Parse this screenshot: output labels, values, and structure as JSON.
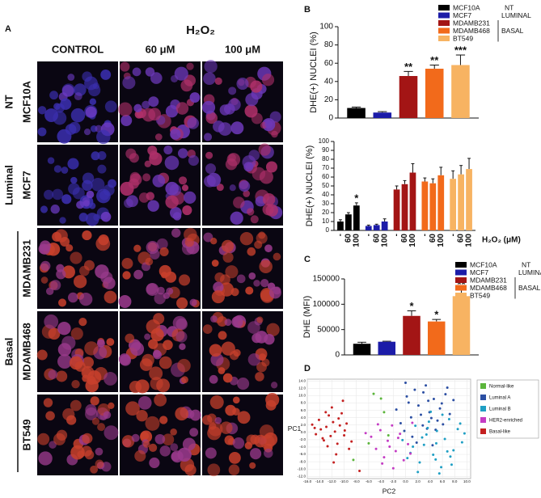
{
  "panel_labels": [
    "A",
    "B",
    "C",
    "D"
  ],
  "panel_a": {
    "treatment": "H₂O₂",
    "columns": [
      "CONTROL",
      "60 μM",
      "100 μM"
    ],
    "rows": [
      "MCF10A",
      "MCF7",
      "MDAMB231",
      "MDAMB468",
      "BT549"
    ],
    "groups": [
      "NT",
      "Luminal",
      "Basal"
    ]
  },
  "chart_data": [
    {
      "type": "bar",
      "ylabel": "DHE(+) NUCLEI (%)",
      "categories": [
        "MCF10A",
        "MCF7",
        "MDAMB231",
        "MDAMB468",
        "BT549"
      ],
      "colors": [
        "#000000",
        "#1c1ca8",
        "#a31515",
        "#f26a1b",
        "#f7b362"
      ],
      "values": [
        11,
        6,
        46,
        54,
        58
      ],
      "errors": [
        1,
        1,
        5,
        4,
        11
      ],
      "annotations": [
        null,
        null,
        "**",
        "**",
        "***"
      ],
      "legend_groups": [
        "NT",
        "LUMINAL",
        "BASAL"
      ],
      "ylim": [
        0,
        100
      ],
      "yticks": [
        0,
        20,
        40,
        60,
        80,
        100
      ]
    },
    {
      "type": "bar",
      "ylabel": "DHE(+) NUCLEI (%)",
      "xlabel": "H₂O₂ (μM)",
      "categories": [
        "-",
        "60",
        "100",
        "-",
        "60",
        "100",
        "-",
        "60",
        "100",
        "-",
        "60",
        "100",
        "-",
        "60",
        "100"
      ],
      "colors": [
        "#000000",
        "#000000",
        "#000000",
        "#1c1ca8",
        "#1c1ca8",
        "#1c1ca8",
        "#a31515",
        "#a31515",
        "#a31515",
        "#f26a1b",
        "#f26a1b",
        "#f26a1b",
        "#f7b362",
        "#f7b362",
        "#f7b362"
      ],
      "values": [
        10,
        18,
        28,
        5,
        6,
        10,
        46,
        52,
        65,
        55,
        53,
        62,
        58,
        63,
        69
      ],
      "errors": [
        2,
        2,
        3,
        1,
        1,
        3,
        4,
        4,
        10,
        4,
        5,
        9,
        9,
        10,
        12
      ],
      "annotations": [
        null,
        null,
        "*",
        null,
        null,
        null,
        null,
        null,
        null,
        null,
        null,
        null,
        null,
        null,
        null
      ],
      "ylim": [
        0,
        100
      ],
      "yticks": [
        0,
        10,
        20,
        30,
        40,
        50,
        60,
        70,
        80,
        90,
        100
      ]
    },
    {
      "type": "bar",
      "ylabel": "DHE (MFI)",
      "categories": [
        "MCF10A",
        "MCF7",
        "MDAMB231",
        "MDAMB468",
        "BT549"
      ],
      "colors": [
        "#000000",
        "#1c1ca8",
        "#a31515",
        "#f26a1b",
        "#f7b362"
      ],
      "values": [
        22000,
        26000,
        77000,
        66000,
        116000
      ],
      "errors": [
        3000,
        1000,
        10000,
        4000,
        14000
      ],
      "annotations": [
        null,
        null,
        "*",
        "*",
        "**"
      ],
      "legend_groups": [
        "NT",
        "LUMINAL",
        "BASAL"
      ],
      "ylim": [
        0,
        150000
      ],
      "yticks": [
        0,
        50000,
        100000,
        150000
      ]
    },
    {
      "type": "scatter",
      "xlabel": "PC2",
      "ylabel": "PC1",
      "grid": true,
      "xlim": [
        -16,
        10.6
      ],
      "ylim": [
        -12.6,
        14.5
      ],
      "xticks": [
        {
          "value": -16,
          "label": "-16.0"
        },
        {
          "value": -14,
          "label": "-14.0"
        },
        {
          "value": -12,
          "label": "-12.0"
        },
        {
          "value": -10,
          "label": "-10.0"
        },
        {
          "value": -8,
          "label": "-8.0"
        },
        {
          "value": -6,
          "label": "-6.0"
        },
        {
          "value": -4,
          "label": "-4.0"
        },
        {
          "value": -2,
          "label": "-2.0"
        },
        {
          "value": 0,
          "label": "0.0"
        },
        {
          "value": 2,
          "label": "2.0"
        },
        {
          "value": 4,
          "label": "4.0"
        },
        {
          "value": 6,
          "label": "6.0"
        },
        {
          "value": 8,
          "label": "8.0"
        },
        {
          "value": 10,
          "label": "10.0"
        }
      ],
      "yticks": [
        {
          "value": 14,
          "label": "14.0"
        },
        {
          "value": 12,
          "label": "12.0"
        },
        {
          "value": 10,
          "label": "10.0"
        },
        {
          "value": 8,
          "label": "8.0"
        },
        {
          "value": 6,
          "label": "6.0"
        },
        {
          "value": 4,
          "label": "4.0"
        },
        {
          "value": 2,
          "label": "2.0"
        },
        {
          "value": 0,
          "label": "0.0"
        },
        {
          "value": -2,
          "label": "-2.0"
        },
        {
          "value": -4,
          "label": "-4.0"
        },
        {
          "value": -6,
          "label": "-6.0"
        },
        {
          "value": -8,
          "label": "-8.0"
        },
        {
          "value": -10,
          "label": "-10.0"
        },
        {
          "value": -12,
          "label": "-12.0"
        }
      ],
      "series": [
        {
          "name": "Normal-like",
          "color": "#5bb53b",
          "x": [
            -5.2,
            -4.0,
            -6.0,
            -2.8,
            -3.5,
            -8.5
          ],
          "values": [
            10.5,
            9.2,
            -3.0,
            -0.8,
            5.5,
            -7.5
          ]
        },
        {
          "name": "Luminal A",
          "color": "#2c4fa3",
          "x": [
            -1.5,
            -0.8,
            0.2,
            0.9,
            1.5,
            2.1,
            2.8,
            3.3,
            3.9,
            4.6,
            5.2,
            5.9,
            6.5,
            7.2,
            1.1,
            2.5,
            3.7,
            4.9,
            6.1,
            0.5,
            -0.2,
            2.9,
            4.2,
            5.6,
            7.8,
            1.8,
            3.5,
            6.8,
            0.0,
            4.4
          ],
          "values": [
            6.2,
            2.5,
            9.8,
            4.1,
            11.6,
            7.3,
            1.9,
            12.8,
            5.5,
            9.1,
            3.2,
            7.9,
            10.4,
            5.0,
            -1.2,
            4.8,
            8.6,
            0.7,
            2.2,
            8.1,
            0.4,
            10.9,
            3.9,
            6.5,
            8.8,
            -2.8,
            1.0,
            12.2,
            13.5,
            -3.5
          ]
        },
        {
          "name": "Luminal B",
          "color": "#1f9fc4",
          "x": [
            -0.5,
            0.8,
            1.6,
            2.3,
            3.0,
            3.8,
            4.5,
            5.1,
            5.8,
            6.4,
            7.1,
            7.8,
            8.5,
            9.2,
            2.0,
            3.4,
            4.9,
            6.0,
            7.5,
            1.2,
            5.5,
            8.9,
            0.3,
            4.1,
            6.8,
            9.6,
            2.7,
            3.6,
            5.0,
            7.3
          ],
          "values": [
            -2.1,
            -5.6,
            1.8,
            -8.2,
            -3.4,
            2.9,
            -6.1,
            0.4,
            -9.5,
            -1.8,
            3.6,
            -4.9,
            0.9,
            -2.7,
            -10.8,
            -0.6,
            -7.4,
            4.8,
            -8.8,
            -3.9,
            -11.2,
            2.4,
            -7.0,
            5.6,
            -5.2,
            -0.3,
            -1.4,
            1.2,
            -3.0,
            -6.6
          ]
        },
        {
          "name": "HER2-enriched",
          "color": "#c43cc4",
          "x": [
            -5.6,
            -4.8,
            -4.1,
            -3.5,
            -2.9,
            -2.2,
            -1.6,
            -0.9,
            -0.3,
            0.4,
            1.1,
            -3.8,
            -2.6,
            -1.2,
            -4.5,
            0.8,
            -6.5,
            -2.0
          ],
          "values": [
            -1.2,
            -4.5,
            0.6,
            -6.8,
            -2.3,
            1.9,
            -5.1,
            -0.4,
            -7.6,
            -3.2,
            2.6,
            -8.5,
            -3.9,
            -1.5,
            2.2,
            -5.8,
            -0.2,
            -9.8
          ]
        },
        {
          "name": "Basal-like",
          "color": "#c42020",
          "x": [
            -15.2,
            -14.6,
            -14.1,
            -13.8,
            -13.3,
            -12.9,
            -12.5,
            -12.2,
            -11.8,
            -11.5,
            -11.1,
            -10.7,
            -10.4,
            -10.0,
            -9.6,
            -9.2,
            -13.5,
            -12.0,
            -14.8,
            -11.3,
            -10.9,
            -12.7,
            -9.9,
            -8.8,
            -13.0,
            -11.7,
            -7.5,
            -10.2
          ],
          "values": [
            2.1,
            -0.5,
            3.4,
            0.8,
            -2.2,
            1.5,
            4.6,
            -1.0,
            2.8,
            0.2,
            -3.1,
            1.9,
            5.2,
            -0.8,
            2.4,
            -4.5,
            -1.6,
            6.8,
            1.2,
            -6.0,
            3.8,
            -3.8,
            0.5,
            -2.5,
            5.5,
            -8.2,
            -10.5,
            8.6
          ]
        }
      ]
    }
  ]
}
